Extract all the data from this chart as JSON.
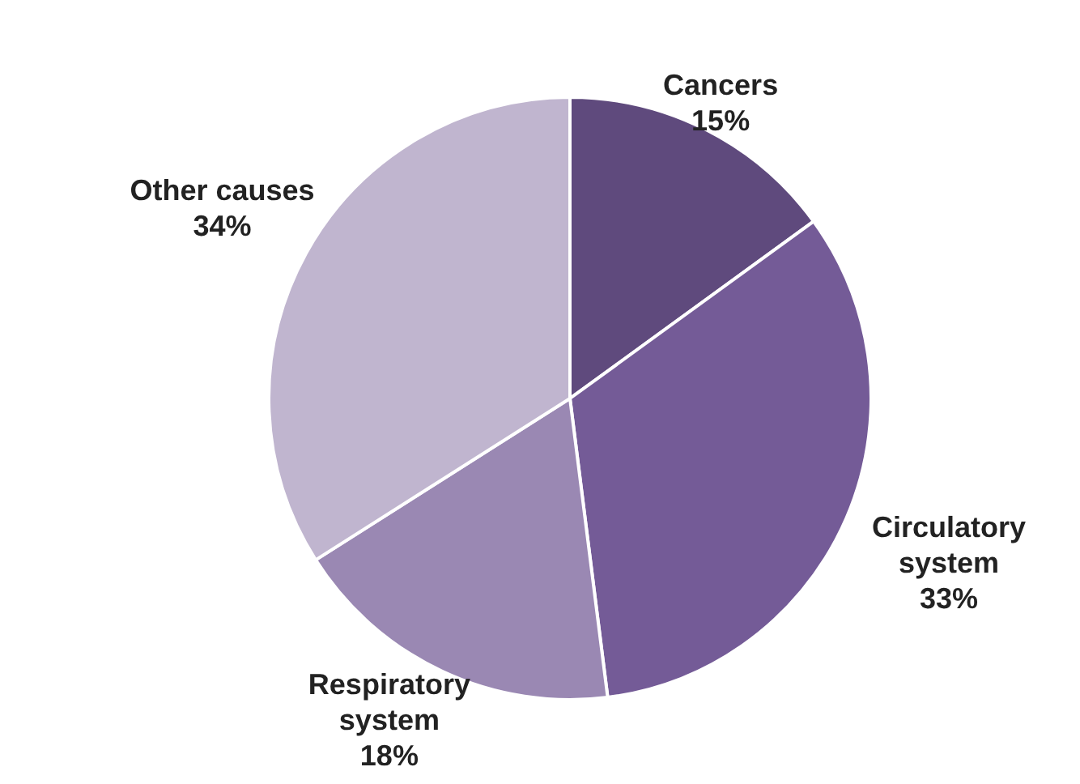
{
  "chart_data": {
    "type": "pie",
    "categories": [
      "Cancers",
      "Circulatory system",
      "Respiratory system",
      "Other causes"
    ],
    "values": [
      15,
      33,
      18,
      34
    ],
    "colors": [
      "#5f4a7d",
      "#745b97",
      "#9a88b3",
      "#c0b5cf"
    ],
    "value_labels": [
      "15%",
      "33%",
      "18%",
      "34%"
    ]
  }
}
